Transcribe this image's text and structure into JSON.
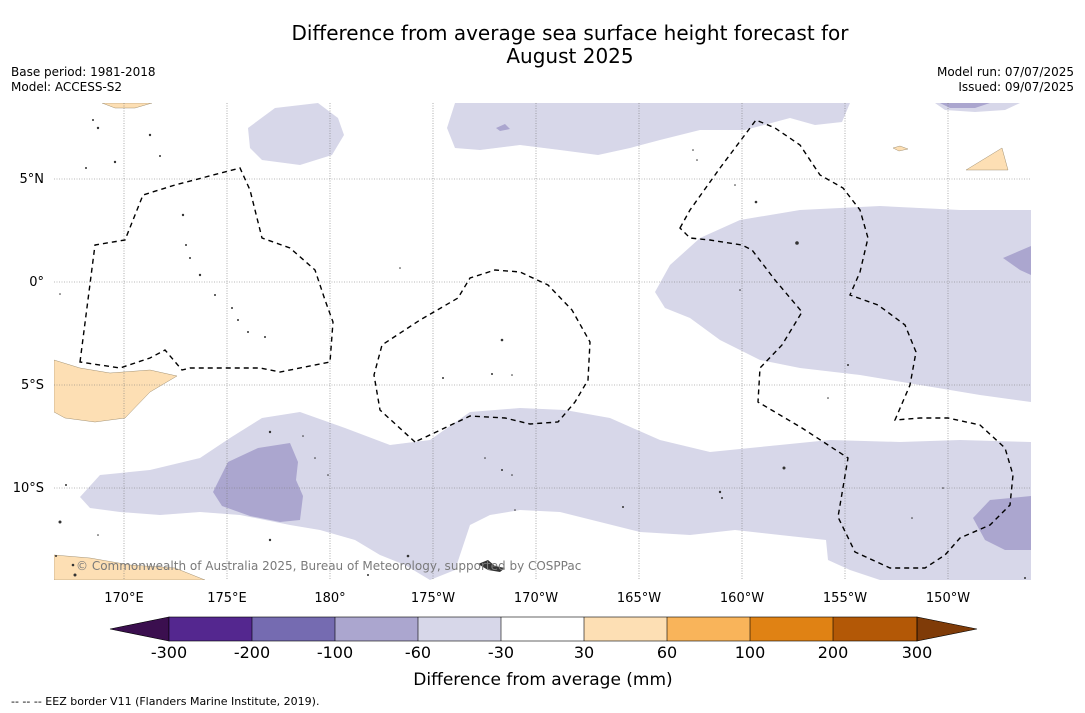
{
  "title_line1": "Difference from average sea surface height forecast for",
  "title_line2": "August 2025",
  "base_period": "Base period: 1981-2018",
  "model": "Model: ACCESS-S2",
  "model_run": "Model run: 07/07/2025",
  "issued": "Issued: 09/07/2025",
  "lat_labels": [
    "5°N",
    "0°",
    "5°S",
    "10°S"
  ],
  "lon_labels": [
    "170°E",
    "175°E",
    "180°",
    "175°W",
    "170°W",
    "165°W",
    "160°W",
    "155°W",
    "150°W"
  ],
  "credit": "© Commonwealth of Australia 2025, Bureau of Meteorology, supported by COSPPac",
  "colorbar": {
    "label": "Difference from average (mm)",
    "ticks": [
      "-300",
      "-200",
      "-100",
      "-60",
      "-30",
      "30",
      "60",
      "100",
      "200",
      "300"
    ],
    "colors": {
      "below_min": "#3b0f4f",
      "c1": "#54278f",
      "c2": "#756bb1",
      "c3": "#aba6cf",
      "c4": "#d7d7e9",
      "c5": "#ffffff",
      "c6": "#fddfb4",
      "c7": "#f9b45a",
      "c8": "#e08214",
      "c9": "#b35806",
      "above_max": "#7f3b08"
    }
  },
  "footer": "-- -- -- EEZ border V11 (Flanders Marine Institute, 2019)."
}
